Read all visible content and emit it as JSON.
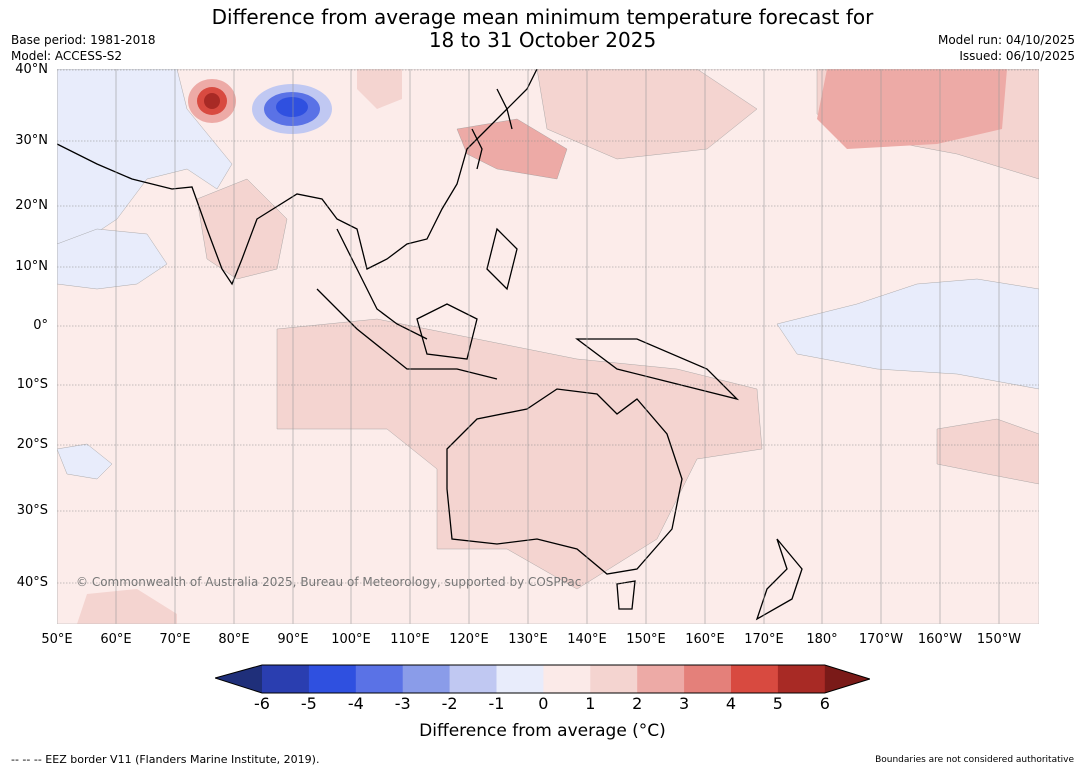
{
  "title": {
    "line1": "Difference from average mean minimum temperature forecast for",
    "line2": "18 to 31 October 2025"
  },
  "meta": {
    "base_period": "Base period: 1981-2018",
    "model": "Model: ACCESS-S2",
    "model_run": "Model run: 04/10/2025",
    "issued": "Issued: 06/10/2025"
  },
  "map": {
    "lat_labels": [
      "40°N",
      "30°N",
      "20°N",
      "10°N",
      "0°",
      "10°S",
      "20°S",
      "30°S",
      "40°S"
    ],
    "lon_labels": [
      "50°E",
      "60°E",
      "70°E",
      "80°E",
      "90°E",
      "100°E",
      "110°E",
      "120°E",
      "130°E",
      "140°E",
      "150°E",
      "160°E",
      "170°E",
      "180°",
      "170°W",
      "160°W",
      "150°W"
    ],
    "copyright": "© Commonwealth of Australia 2025, Bureau of Meteorology, supported by COSPPac"
  },
  "colorbar": {
    "ticks": [
      "-6",
      "-5",
      "-4",
      "-3",
      "-2",
      "-1",
      "0",
      "1",
      "2",
      "3",
      "4",
      "5",
      "6"
    ],
    "colors": [
      "#1f2f7a",
      "#2a3eb0",
      "#2f50e0",
      "#5a72e6",
      "#8a9ce9",
      "#c0c8f2",
      "#e8ecfb",
      "#fbeae8",
      "#f4d4d0",
      "#edaaa6",
      "#e4807a",
      "#d84a40",
      "#a82a25",
      "#7a1a18"
    ],
    "label": "Difference from average (°C)"
  },
  "footer": {
    "eez": "--  --  -- EEZ border V11 (Flanders Marine Institute, 2019).",
    "disclaimer": "Boundaries are not considered authoritative"
  }
}
